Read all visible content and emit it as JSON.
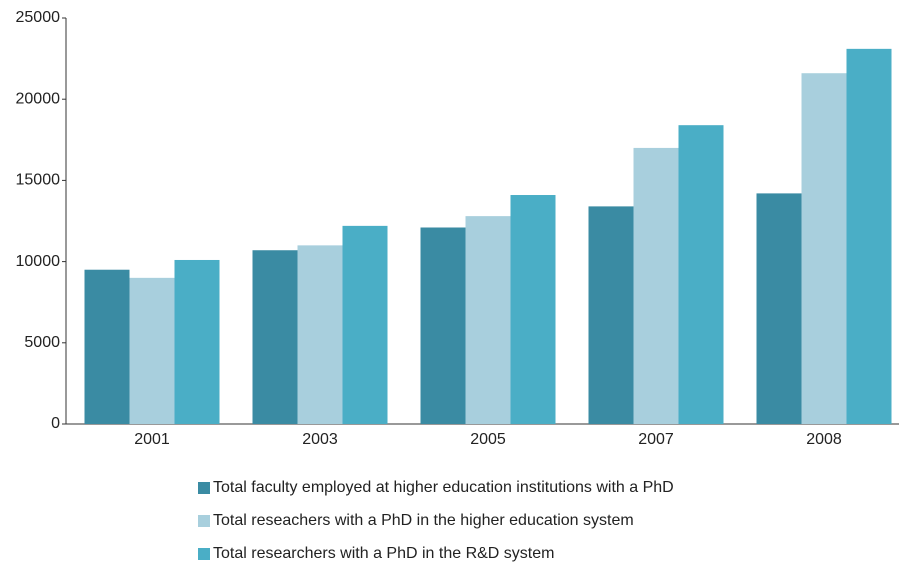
{
  "chart_data": {
    "type": "bar",
    "categories": [
      "2001",
      "2003",
      "2005",
      "2007",
      "2008"
    ],
    "series": [
      {
        "name": "Total faculty employed at higher education institutions with a PhD",
        "color": "#3a8ba3",
        "values": [
          9500,
          10700,
          12100,
          13400,
          14200
        ]
      },
      {
        "name": "Total reseachers with a PhD in the higher education system",
        "color": "#a8cfdd",
        "values": [
          9000,
          11000,
          12800,
          17000,
          21600
        ]
      },
      {
        "name": "Total researchers with a PhD in the R&D system",
        "color": "#4aaec6",
        "values": [
          10100,
          12200,
          14100,
          18400,
          23100
        ]
      }
    ],
    "ylim": [
      0,
      25000
    ],
    "yticks": [
      0,
      5000,
      10000,
      15000,
      20000,
      25000
    ],
    "grid": false
  }
}
